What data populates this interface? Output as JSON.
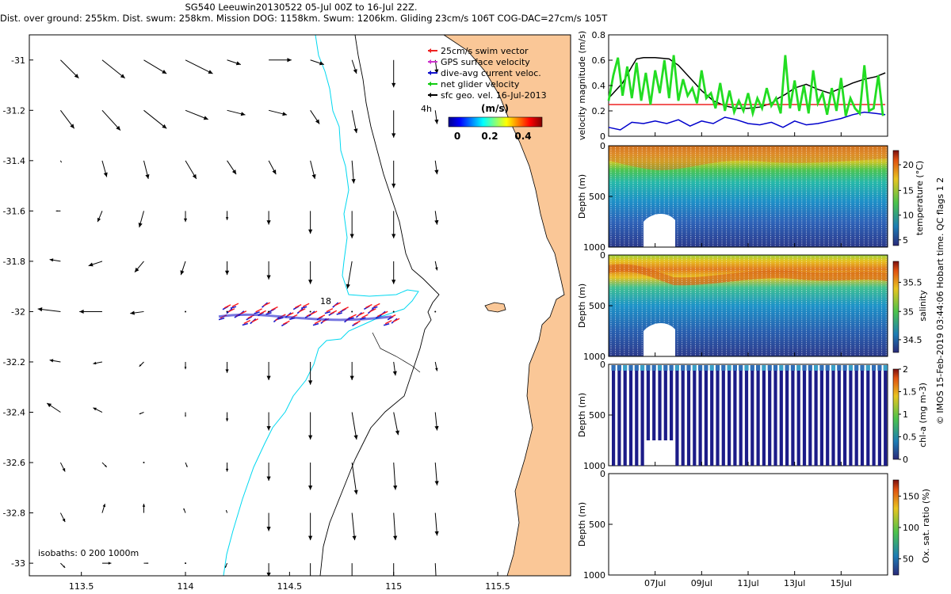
{
  "header": {
    "line1": "SG540 Leeuwin20130522 05-Jul 00Z to 16-Jul 22Z.",
    "line2": "Dist. over ground: 255km. Dist. swum: 258km. Mission DOG: 1158km. Swum: 1206km. Gliding 23cm/s 106T COG-DAC=27cm/s 105T"
  },
  "colors": {
    "land": "#fac797",
    "coastline": "#000000",
    "isobath200": "#00d8f0",
    "track_red": "#ff1a1a",
    "track_blue": "#1a1acc",
    "speed_green": "#22dd22",
    "dac_blue": "#0000cc",
    "gps_black": "#000000",
    "swim_red": "#ee2222"
  },
  "chart_data": [
    {
      "type": "scatter",
      "name": "map",
      "title": "",
      "xlabel": "",
      "ylabel": "",
      "xlim": [
        113.25,
        115.85
      ],
      "ylim": [
        -33.05,
        -30.9
      ],
      "xticks": [
        113.5,
        114,
        114.5,
        115,
        115.5
      ],
      "xtick_labels": [
        "113.5",
        "114",
        "114.5",
        "115",
        "115.5"
      ],
      "yticks": [
        -31,
        -31.2,
        -31.4,
        -31.6,
        -31.8,
        -32,
        -32.2,
        -32.4,
        -32.6,
        -32.8,
        -33
      ],
      "ytick_labels": [
        "-31",
        "-31.2",
        "-31.4",
        "-31.6",
        "-31.8",
        "-32",
        "-32.2",
        "-32.4",
        "-32.6",
        "-32.8",
        "-33"
      ],
      "legend": {
        "items": [
          "25cm/s swim vector",
          "GPS surface velocity",
          "dive-avg current veloc.",
          "net glider velocity",
          "sfc geo. vel. 16-Jul-2013"
        ],
        "colors": [
          "#ee2222",
          "#cc33cc",
          "#1111cc",
          "#11cc11",
          "#000000"
        ],
        "placement": "top-right"
      },
      "annotations": {
        "four_hour_label": "4h",
        "isobaths": "isobaths: 0   200  1000m",
        "dive_label": "18"
      },
      "colorbar": {
        "label": "(m/s)",
        "ticks": [
          "0",
          "0.2",
          "0.4"
        ]
      },
      "current_vectors": {
        "lons": [
          113.4,
          113.6,
          113.8,
          114.0,
          114.2,
          114.4,
          114.6,
          114.8,
          115.0,
          115.2
        ],
        "lats": [
          -31.0,
          -31.2,
          -31.4,
          -31.6,
          -31.8,
          -32.0,
          -32.2,
          -32.4,
          -32.6,
          -32.8,
          -33.0
        ],
        "u_v_ms": [
          [
            [
              0.2,
              -0.2
            ],
            [
              0.25,
              -0.2
            ],
            [
              0.25,
              -0.15
            ],
            [
              0.3,
              -0.15
            ],
            [
              0.15,
              -0.05
            ],
            [
              0.25,
              0
            ],
            [
              0.15,
              -0.05
            ],
            [
              0.05,
              -0.15
            ],
            [
              0,
              -0.3
            ],
            [
              0.02,
              -0.15
            ]
          ],
          [
            [
              0.15,
              -0.2
            ],
            [
              0.2,
              -0.22
            ],
            [
              0.25,
              -0.2
            ],
            [
              0.25,
              -0.1
            ],
            [
              0.2,
              -0.05
            ],
            [
              0.2,
              -0.05
            ],
            [
              0.1,
              -0.15
            ],
            [
              0.05,
              -0.25
            ],
            [
              0,
              -0.3
            ],
            [
              0.02,
              -0.15
            ]
          ],
          [
            [
              0.01,
              -0.02
            ],
            [
              0.05,
              -0.18
            ],
            [
              0.05,
              -0.2
            ],
            [
              0.12,
              -0.2
            ],
            [
              0.1,
              -0.15
            ],
            [
              0.08,
              -0.15
            ],
            [
              0.05,
              -0.2
            ],
            [
              0.02,
              -0.25
            ],
            [
              0,
              -0.3
            ],
            [
              0.02,
              -0.15
            ]
          ],
          [
            [
              -0.05,
              0
            ],
            [
              -0.05,
              -0.12
            ],
            [
              -0.05,
              -0.18
            ],
            [
              0,
              -0.12
            ],
            [
              0,
              -0.1
            ],
            [
              0,
              -0.15
            ],
            [
              0,
              -0.25
            ],
            [
              0,
              -0.3
            ],
            [
              0,
              -0.3
            ],
            [
              0.02,
              -0.15
            ]
          ],
          [
            [
              -0.12,
              0.02
            ],
            [
              -0.15,
              -0.05
            ],
            [
              -0.1,
              -0.12
            ],
            [
              -0.05,
              -0.15
            ],
            [
              0,
              -0.15
            ],
            [
              0,
              -0.2
            ],
            [
              0,
              -0.25
            ],
            [
              -0.05,
              -0.3
            ],
            [
              0,
              -0.25
            ],
            [
              0.02,
              -0.1
            ]
          ],
          [
            [
              -0.25,
              0.03
            ],
            [
              -0.25,
              0
            ],
            [
              -0.15,
              -0.02
            ],
            [
              0,
              0
            ],
            [
              0,
              0
            ],
            [
              0,
              0
            ],
            [
              0,
              0
            ],
            [
              0,
              0
            ],
            [
              0,
              0
            ],
            [
              0,
              0
            ]
          ],
          [
            [
              -0.12,
              0.02
            ],
            [
              -0.1,
              -0.02
            ],
            [
              -0.05,
              -0.05
            ],
            [
              0,
              -0.08
            ],
            [
              0,
              -0.12
            ],
            [
              0,
              -0.2
            ],
            [
              0,
              -0.25
            ],
            [
              0,
              -0.2
            ],
            [
              0.02,
              -0.15
            ],
            [
              0.02,
              -0.1
            ]
          ],
          [
            [
              -0.15,
              0.1
            ],
            [
              -0.1,
              0.05
            ],
            [
              -0.05,
              -0.02
            ],
            [
              0,
              -0.05
            ],
            [
              0,
              -0.1
            ],
            [
              0,
              -0.2
            ],
            [
              0,
              -0.3
            ],
            [
              0.05,
              -0.3
            ],
            [
              0.05,
              -0.25
            ],
            [
              0.02,
              -0.2
            ]
          ],
          [
            [
              0.05,
              -0.1
            ],
            [
              0.05,
              -0.05
            ],
            [
              0,
              0
            ],
            [
              0.02,
              -0.05
            ],
            [
              0,
              -0.1
            ],
            [
              0,
              -0.2
            ],
            [
              0,
              -0.3
            ],
            [
              0.05,
              -0.35
            ],
            [
              0.02,
              -0.3
            ],
            [
              0.02,
              -0.25
            ]
          ],
          [
            [
              0.05,
              -0.1
            ],
            [
              0.03,
              0.1
            ],
            [
              0,
              0.1
            ],
            [
              -0.02,
              0.05
            ],
            [
              -0.01,
              0.03
            ],
            [
              0,
              -0.2
            ],
            [
              0,
              -0.3
            ],
            [
              0.03,
              -0.3
            ],
            [
              0.02,
              -0.3
            ],
            [
              0.02,
              -0.25
            ]
          ],
          [
            [
              0.05,
              -0.05
            ],
            [
              0.1,
              0
            ],
            [
              0.05,
              0
            ],
            [
              0,
              0
            ],
            [
              -0.02,
              -0.05
            ],
            [
              0,
              -0.15
            ],
            [
              0,
              -0.25
            ],
            [
              0,
              -0.25
            ],
            [
              0,
              -0.3
            ],
            [
              0.01,
              -0.2
            ]
          ]
        ]
      }
    },
    {
      "type": "line",
      "name": "velocity-magnitude",
      "xlabel": "",
      "ylabel": "velocity magnitude (m/s)",
      "xlim": [
        5.0,
        17.0
      ],
      "ylim": [
        0,
        0.8
      ],
      "yticks": [
        0,
        0.2,
        0.4,
        0.6,
        0.8
      ],
      "ytick_labels": [
        "0",
        "0.2",
        "0.4",
        "0.6",
        "0.8"
      ],
      "series": [
        {
          "name": "gps surface speed",
          "color": "#000000",
          "x": [
            5.0,
            5.6,
            6.0,
            6.2,
            6.5,
            7.0,
            7.6,
            8.0,
            8.5,
            9.0,
            9.5,
            10.0,
            10.5,
            11.0,
            11.5,
            12.0,
            12.3,
            12.6,
            13.0,
            13.5,
            14.0,
            14.5,
            15.0,
            15.5,
            16.0,
            16.5,
            16.9
          ],
          "values": [
            0.3,
            0.42,
            0.55,
            0.61,
            0.62,
            0.62,
            0.61,
            0.56,
            0.46,
            0.36,
            0.28,
            0.24,
            0.22,
            0.22,
            0.23,
            0.26,
            0.3,
            0.33,
            0.38,
            0.41,
            0.37,
            0.34,
            0.38,
            0.42,
            0.45,
            0.47,
            0.5
          ]
        },
        {
          "name": "swim speed",
          "color": "#ee2222",
          "x": [
            5.0,
            16.9
          ],
          "values": [
            0.25,
            0.25
          ]
        },
        {
          "name": "dive-avg current",
          "color": "#0000cc",
          "x": [
            5.0,
            5.5,
            6.0,
            6.5,
            7.0,
            7.5,
            8.0,
            8.5,
            9.0,
            9.5,
            10.0,
            10.5,
            11.0,
            11.5,
            12.0,
            12.5,
            13.0,
            13.5,
            14.0,
            14.5,
            15.0,
            15.5,
            16.0,
            16.5,
            16.9
          ],
          "values": [
            0.07,
            0.05,
            0.11,
            0.1,
            0.12,
            0.1,
            0.13,
            0.08,
            0.12,
            0.1,
            0.15,
            0.13,
            0.1,
            0.09,
            0.11,
            0.07,
            0.12,
            0.09,
            0.1,
            0.12,
            0.14,
            0.17,
            0.19,
            0.18,
            0.17
          ]
        },
        {
          "name": "net glider velocity",
          "color": "#22dd22",
          "x": [
            5.0,
            5.2,
            5.4,
            5.6,
            5.8,
            6.0,
            6.2,
            6.4,
            6.6,
            6.8,
            7.0,
            7.2,
            7.4,
            7.6,
            7.8,
            8.0,
            8.2,
            8.4,
            8.6,
            8.8,
            9.0,
            9.2,
            9.4,
            9.6,
            9.8,
            10.0,
            10.2,
            10.4,
            10.6,
            10.8,
            11.0,
            11.2,
            11.4,
            11.6,
            11.8,
            12.0,
            12.2,
            12.4,
            12.6,
            12.8,
            13.0,
            13.2,
            13.4,
            13.6,
            13.8,
            14.0,
            14.2,
            14.4,
            14.6,
            14.8,
            15.0,
            15.2,
            15.4,
            15.6,
            15.8,
            16.0,
            16.2,
            16.4,
            16.6,
            16.8
          ],
          "values": [
            0.28,
            0.48,
            0.62,
            0.32,
            0.55,
            0.3,
            0.58,
            0.28,
            0.5,
            0.25,
            0.52,
            0.34,
            0.6,
            0.3,
            0.64,
            0.28,
            0.45,
            0.32,
            0.38,
            0.26,
            0.52,
            0.3,
            0.34,
            0.22,
            0.42,
            0.2,
            0.36,
            0.19,
            0.28,
            0.2,
            0.34,
            0.18,
            0.3,
            0.22,
            0.38,
            0.24,
            0.3,
            0.18,
            0.64,
            0.22,
            0.44,
            0.2,
            0.4,
            0.18,
            0.52,
            0.26,
            0.34,
            0.17,
            0.38,
            0.2,
            0.46,
            0.16,
            0.3,
            0.22,
            0.18,
            0.56,
            0.2,
            0.22,
            0.48,
            0.16
          ]
        }
      ]
    },
    {
      "type": "heatmap",
      "name": "temperature-section",
      "xlabel": "",
      "ylabel": "Depth (m)",
      "ylim": [
        1000,
        0
      ],
      "yticks": [
        0,
        500,
        1000
      ],
      "ytick_labels": [
        "0",
        "500",
        "1000"
      ],
      "colorbar": {
        "label": "temperature (°C)",
        "range": [
          4,
          23
        ],
        "ticks": [
          "5",
          "10",
          "15",
          "20"
        ]
      },
      "max_depth_profile_m": {
        "x": [
          5.0,
          6.5,
          6.6,
          7.0,
          7.4,
          7.5,
          16.9
        ],
        "depth": [
          1000,
          1000,
          700,
          650,
          700,
          1000,
          1000
        ]
      },
      "profile_summary": {
        "surface_range_c": [
          19,
          23
        ],
        "thermocline_depth_m": 200,
        "deep_value_c": 5
      }
    },
    {
      "type": "heatmap",
      "name": "salinity-section",
      "xlabel": "",
      "ylabel": "Depth (m)",
      "ylim": [
        1000,
        0
      ],
      "yticks": [
        0,
        500,
        1000
      ],
      "ytick_labels": [
        "0",
        "500",
        "1000"
      ],
      "colorbar": {
        "label": "salinity",
        "range": [
          34.3,
          35.9
        ],
        "ticks": [
          "34.5",
          "35",
          "35.5"
        ]
      },
      "max_depth_profile_m": {
        "x": [
          5.0,
          6.5,
          6.6,
          7.0,
          7.4,
          7.5,
          16.9
        ],
        "depth": [
          1000,
          1000,
          700,
          650,
          700,
          1000,
          1000
        ]
      },
      "profile_summary": {
        "surface_value": 35.3,
        "max_depth_m": 150,
        "max_value": 35.8,
        "deep_value": 34.4
      }
    },
    {
      "type": "heatmap",
      "name": "chla-section",
      "xlabel": "",
      "ylabel": "Depth (m)",
      "ylim": [
        1000,
        0
      ],
      "yticks": [
        0,
        500,
        1000
      ],
      "ytick_labels": [
        "0",
        "500",
        "1000"
      ],
      "colorbar": {
        "label": "chl-a (mg m-3)",
        "range": [
          0,
          2
        ],
        "ticks": [
          "0",
          "0.5",
          "1",
          "1.5",
          "2"
        ]
      },
      "profile_summary": {
        "surface_value": 0.5,
        "deep_value": 0
      }
    },
    {
      "type": "heatmap",
      "name": "oxygen-section",
      "xlabel": "",
      "ylabel": "Depth (m)",
      "ylim": [
        1000,
        0
      ],
      "yticks": [
        0,
        500,
        1000
      ],
      "ytick_labels": [
        "0",
        "500",
        "1000"
      ],
      "colorbar": {
        "label": "Ox. sat. ratio (%)",
        "range": [
          25,
          175
        ],
        "ticks": [
          "50",
          "100",
          "150"
        ]
      },
      "xticks": [
        7,
        9,
        11,
        13,
        15
      ],
      "xtick_labels": [
        "07Jul",
        "09Jul",
        "11Jul",
        "13Jul",
        "15Jul"
      ]
    }
  ],
  "footer": {
    "note": "© IMOS 15-Feb-2019 03:44:06 Hobart time. QC flags 1  2"
  }
}
